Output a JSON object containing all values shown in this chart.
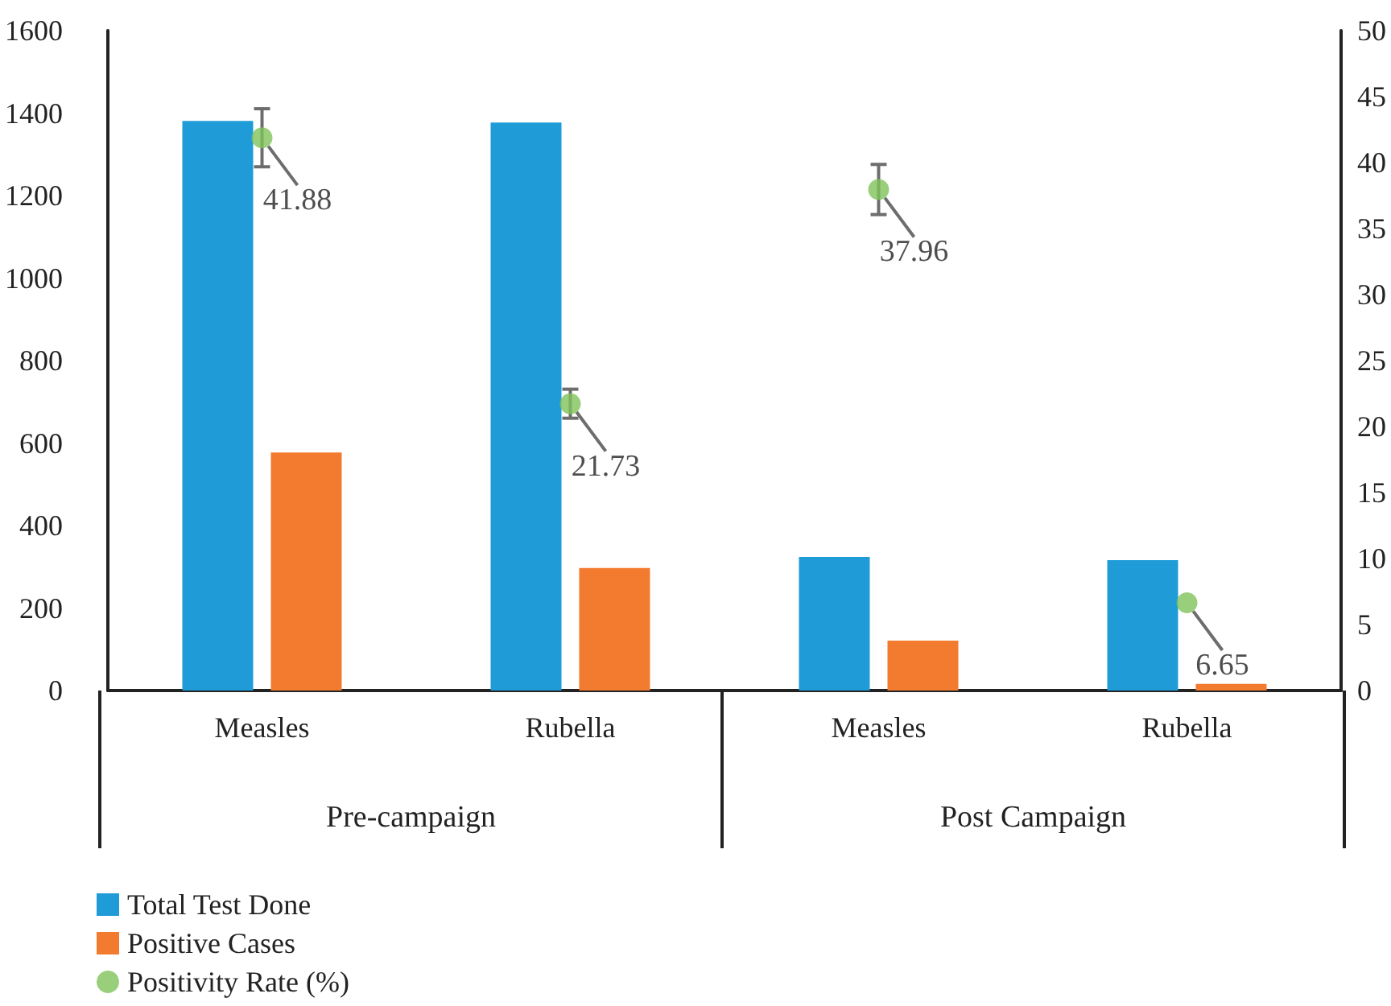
{
  "chart_data": {
    "type": "bar",
    "categories": [
      "Measles",
      "Rubella",
      "Measles",
      "Rubella"
    ],
    "annotations": [
      "Pre-campaign",
      "Post Campaign"
    ],
    "series": [
      {
        "name": "Total Test Done",
        "color": "#1f9cd7",
        "values": [
          1381,
          1377,
          324,
          316
        ]
      },
      {
        "name": "Positive Cases",
        "color": "#f37b2f",
        "values": [
          577,
          297,
          121,
          16
        ]
      },
      {
        "name": "Positivity Rate (%)",
        "type": "scatter",
        "axis": "y2",
        "color": "#80c25a",
        "values": [
          41.88,
          21.73,
          37.96,
          6.65
        ],
        "errors": [
          2.2,
          1.1,
          1.9,
          null
        ],
        "data_labels": true
      }
    ],
    "ylim": [
      0,
      1600
    ],
    "yticks": [
      0,
      200,
      400,
      600,
      800,
      1000,
      1200,
      1400,
      1600
    ],
    "y2lim": [
      0,
      50
    ],
    "y2ticks": [
      0,
      5,
      10,
      15,
      20,
      25,
      30,
      35,
      40,
      45,
      50
    ],
    "grid": false,
    "legend": "bottom left",
    "marker": "circle"
  }
}
